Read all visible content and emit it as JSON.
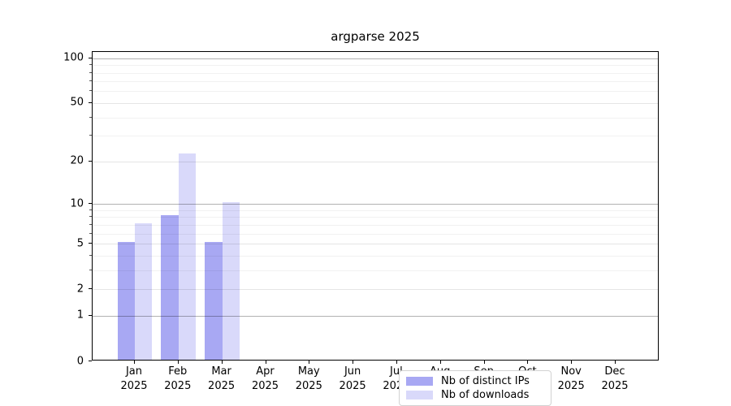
{
  "title": "argparse 2025",
  "chart_data": {
    "type": "bar",
    "title": "argparse 2025",
    "categories": [
      "Jan",
      "Feb",
      "Mar",
      "Apr",
      "May",
      "Jun",
      "Jul",
      "Aug",
      "Sep",
      "Oct",
      "Nov",
      "Dec"
    ],
    "category_year": "2025",
    "series": [
      {
        "name": "Nb of distinct IPs",
        "color": "#a8a8f3",
        "values": [
          5,
          8,
          5,
          0,
          0,
          0,
          0,
          0,
          0,
          0,
          0,
          0
        ]
      },
      {
        "name": "Nb of downloads",
        "color": "#d9d9fa",
        "values": [
          7,
          22,
          10,
          0,
          0,
          0,
          0,
          0,
          0,
          0,
          0,
          0
        ]
      }
    ],
    "xlabel": "",
    "ylabel": "",
    "yscale": "log1p",
    "ylim": [
      0,
      110
    ],
    "yticks_labeled": [
      0,
      1,
      2,
      5,
      10,
      20,
      50,
      100
    ],
    "yticks_major": [
      1,
      10,
      100
    ],
    "yticks_minor": [
      3,
      4,
      6,
      7,
      8,
      9,
      30,
      40,
      60,
      70,
      80,
      90
    ],
    "grid": true,
    "legend_position": "lower center"
  }
}
